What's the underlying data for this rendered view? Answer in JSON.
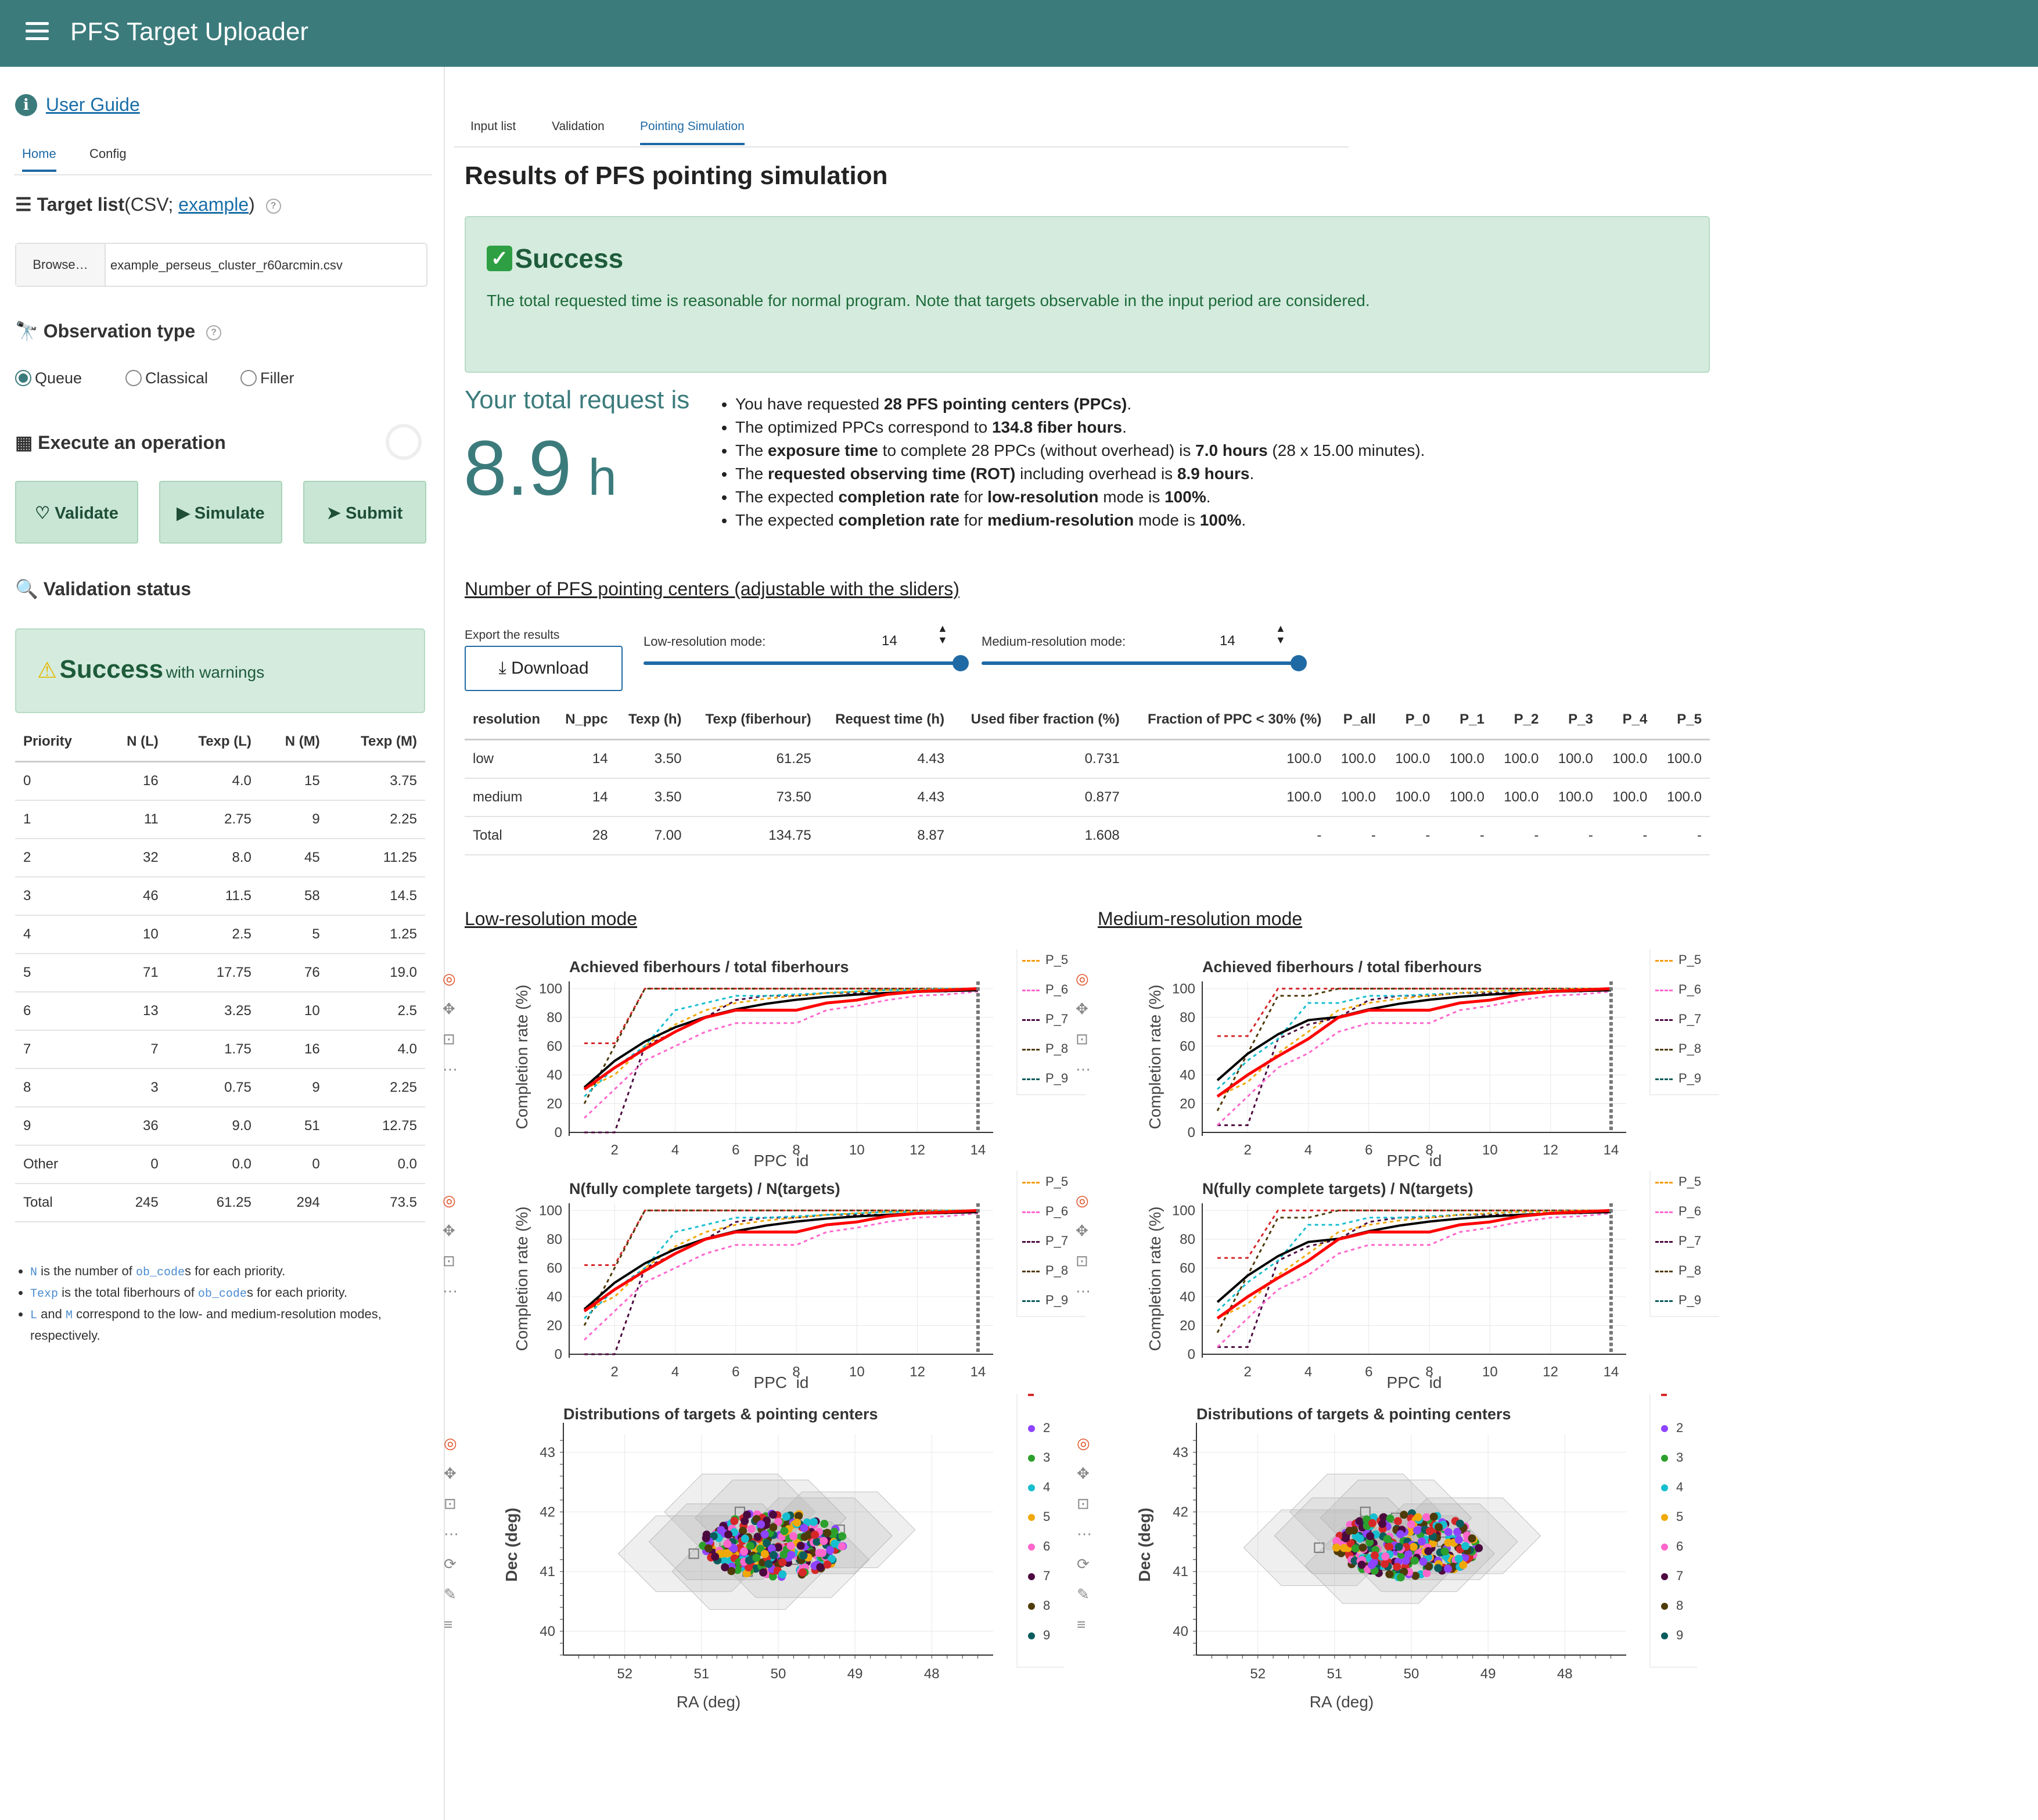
{
  "app": {
    "title": "PFS Target Uploader"
  },
  "sidebar": {
    "user_guide": "User Guide",
    "tabs": [
      "Home",
      "Config"
    ],
    "target_list": {
      "label": "Target list",
      "csv_prefix": "(CSV; ",
      "example": "example",
      "csv_suffix": ")"
    },
    "file": {
      "browse": "Browse…",
      "name": "example_perseus_cluster_r60arcmin.csv"
    },
    "obs_type": {
      "label": "Observation type",
      "options": [
        "Queue",
        "Classical",
        "Filler"
      ],
      "selected": "Queue"
    },
    "execute": {
      "label": "Execute an operation",
      "buttons": [
        "Validate",
        "Simulate",
        "Submit"
      ]
    },
    "validation": {
      "label": "Validation status",
      "status": "Success",
      "status_suffix": "with warnings",
      "headers": [
        "Priority",
        "N (L)",
        "Texp (L)",
        "N (M)",
        "Texp (M)"
      ],
      "rows": [
        [
          "0",
          "16",
          "4.0",
          "15",
          "3.75"
        ],
        [
          "1",
          "11",
          "2.75",
          "9",
          "2.25"
        ],
        [
          "2",
          "32",
          "8.0",
          "45",
          "11.25"
        ],
        [
          "3",
          "46",
          "11.5",
          "58",
          "14.5"
        ],
        [
          "4",
          "10",
          "2.5",
          "5",
          "1.25"
        ],
        [
          "5",
          "71",
          "17.75",
          "76",
          "19.0"
        ],
        [
          "6",
          "13",
          "3.25",
          "10",
          "2.5"
        ],
        [
          "7",
          "7",
          "1.75",
          "16",
          "4.0"
        ],
        [
          "8",
          "3",
          "0.75",
          "9",
          "2.25"
        ],
        [
          "9",
          "36",
          "9.0",
          "51",
          "12.75"
        ],
        [
          "Other",
          "0",
          "0.0",
          "0",
          "0.0"
        ],
        [
          "Total",
          "245",
          "61.25",
          "294",
          "73.5"
        ]
      ],
      "notes": {
        "n_code": "N",
        "n_text1": " is the number of ",
        "obcode": "ob_code",
        "n_text2": "s for each priority.",
        "texp_code": "Texp",
        "texp_text1": " is the total fiberhours of ",
        "texp_text2": "s for each priority.",
        "l_code": "L",
        "and": " and ",
        "m_code": "M",
        "lm_text": " correspond to the low- and medium-resolution modes, respectively."
      }
    }
  },
  "main": {
    "tabs": [
      "Input list",
      "Validation",
      "Pointing Simulation"
    ],
    "active_tab": "Pointing Simulation",
    "heading": "Results of PFS pointing simulation",
    "alert": {
      "title": "Success",
      "text": "The total requested time is reasonable for normal program. Note that targets observable in the input period are considered."
    },
    "request": {
      "label": "Your total request is",
      "value": "8.9",
      "unit": "h"
    },
    "bullets": [
      {
        "pre": "You have requested ",
        "b1": "28 PFS pointing centers (PPCs)",
        "post": "."
      },
      {
        "pre": "The optimized PPCs correspond to ",
        "b1": "134.8 fiber hours",
        "post": "."
      },
      {
        "pre": "The ",
        "b1": "exposure time",
        "mid": " to complete 28 PPCs (without overhead) is ",
        "b2": "7.0 hours",
        "post": " (28 x 15.00 minutes)."
      },
      {
        "pre": "The ",
        "b1": "requested observing time (ROT)",
        "mid": " including overhead is ",
        "b2": "8.9 hours",
        "post": "."
      },
      {
        "pre": "The expected ",
        "b1": "completion rate",
        "mid": " for ",
        "b2": "low-resolution",
        "mid2": " mode is ",
        "b3": "100%",
        "post": "."
      },
      {
        "pre": "The expected ",
        "b1": "completion rate",
        "mid": " for ",
        "b2": "medium-resolution",
        "mid2": " mode is ",
        "b3": "100%",
        "post": "."
      }
    ],
    "ppc_section": "Number of PFS pointing centers (adjustable with the sliders)",
    "export_label": "Export the results",
    "download": "Download",
    "low_slider": {
      "label": "Low-resolution mode:",
      "value": "14"
    },
    "med_slider": {
      "label": "Medium-resolution mode:",
      "value": "14"
    },
    "ppc_table": {
      "headers": [
        "resolution",
        "N_ppc",
        "Texp (h)",
        "Texp (fiberhour)",
        "Request time (h)",
        "Used fiber fraction (%)",
        "Fraction of PPC < 30% (%)",
        "P_all",
        "P_0",
        "P_1",
        "P_2",
        "P_3",
        "P_4",
        "P_5"
      ],
      "rows": [
        [
          "low",
          "14",
          "3.50",
          "61.25",
          "4.43",
          "0.731",
          "100.0",
          "100.0",
          "100.0",
          "100.0",
          "100.0",
          "100.0",
          "100.0",
          "100.0"
        ],
        [
          "medium",
          "14",
          "3.50",
          "73.50",
          "4.43",
          "0.877",
          "100.0",
          "100.0",
          "100.0",
          "100.0",
          "100.0",
          "100.0",
          "100.0",
          "100.0"
        ],
        [
          "Total",
          "28",
          "7.00",
          "134.75",
          "8.87",
          "1.608",
          "-",
          "-",
          "-",
          "-",
          "-",
          "-",
          "-",
          "-"
        ]
      ]
    },
    "low_mode_title": "Low-resolution mode",
    "med_mode_title": "Medium-resolution mode",
    "panel_titles": {
      "fh": "Achieved fiberhours / total fiberhours",
      "nt": "N(fully complete targets) / N(targets)",
      "dist": "Distributions of targets & pointing centers"
    }
  },
  "chart_data": [
    {
      "type": "line",
      "title": "Achieved fiberhours / total fiberhours",
      "xlabel": "PPC_id",
      "ylabel": "Completion rate (%)",
      "xticks": [
        2,
        4,
        6,
        8,
        10,
        12,
        14
      ],
      "yticks": [
        0,
        20,
        40,
        60,
        80,
        100
      ],
      "xlim": [
        0.5,
        14.5
      ],
      "ylim": [
        0,
        105
      ],
      "legend": [
        "P_5",
        "P_6",
        "P_7",
        "P_8",
        "P_9"
      ],
      "legend_colors": {
        "P_5": "#f39c12",
        "P_6": "#ff66cc",
        "P_7": "#4b0a3f",
        "P_8": "#4f3a0a",
        "P_9": "#0b5c5c"
      }
    },
    {
      "type": "line",
      "title": "N(fully complete targets) / N(targets)",
      "xlabel": "PPC_id",
      "ylabel": "Completion rate (%)",
      "xticks": [
        2,
        4,
        6,
        8,
        10,
        12,
        14
      ],
      "yticks": [
        0,
        20,
        40,
        60,
        80,
        100
      ],
      "xlim": [
        0.5,
        14.5
      ],
      "ylim": [
        0,
        105
      ],
      "legend": [
        "P_5",
        "P_6",
        "P_7",
        "P_8",
        "P_9"
      ]
    },
    {
      "type": "scatter",
      "title": "Distributions of targets & pointing centers",
      "xlabel": "RA (deg)",
      "ylabel": "Dec (deg)",
      "xticks": [
        52,
        51,
        50,
        49,
        48
      ],
      "yticks": [
        40,
        41,
        42,
        43
      ],
      "xlim": [
        52.8,
        47.2
      ],
      "ylim": [
        39.6,
        43.3
      ],
      "legend": [
        "2",
        "3",
        "4",
        "5",
        "6",
        "7",
        "8",
        "9"
      ],
      "legend_colors": {
        "1": "#d62728",
        "2": "#8e44ff",
        "3": "#2ca02c",
        "4": "#17becf",
        "5": "#f1a90a",
        "6": "#ff66cc",
        "7": "#4b0a3f",
        "8": "#4f3a0a",
        "9": "#0b5c5c"
      }
    }
  ]
}
